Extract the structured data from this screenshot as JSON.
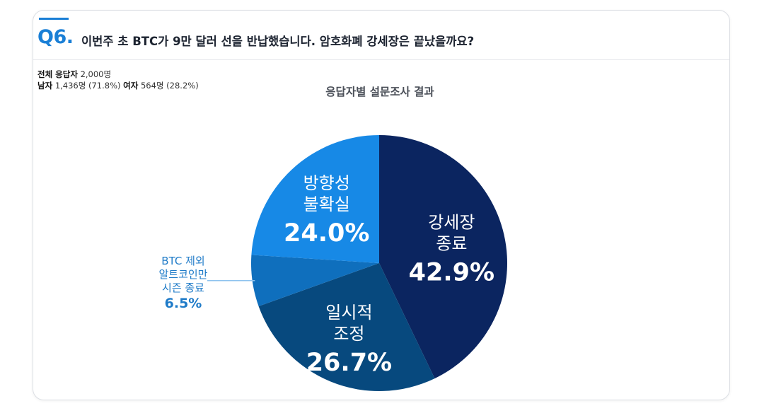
{
  "question": {
    "number": "Q6.",
    "text": "이번주 초 BTC가 9만 달러 선을 반납했습니다. 암호화폐 강세장은 끝났을까요?"
  },
  "respondents": {
    "total_label": "전체 응답자",
    "total_value": "2,000명",
    "male_label": "남자",
    "male_value": "1,436명 (71.8%)",
    "female_label": "여자",
    "female_value": "564명 (28.2%)"
  },
  "chart_data": {
    "type": "pie",
    "title": "응답자별 설문조사 결과",
    "slices": [
      {
        "label_lines": [
          "강세장",
          "종료"
        ],
        "value": 42.9,
        "value_label": "42.9%",
        "color": "#0b2560",
        "label_position": "inside"
      },
      {
        "label_lines": [
          "일시적",
          "조정"
        ],
        "value": 26.7,
        "value_label": "26.7%",
        "color": "#07497e",
        "label_position": "inside"
      },
      {
        "label_lines": [
          "BTC 제외",
          "알트코인만",
          "시즌 종료"
        ],
        "value": 6.5,
        "value_label": "6.5%",
        "color": "#0f6fbd",
        "label_position": "outside-left"
      },
      {
        "label_lines": [
          "방향성",
          "불확실"
        ],
        "value": 24.0,
        "value_label": "24.0%",
        "color": "#1789e6",
        "label_position": "inside"
      }
    ],
    "start": "12 o'clock",
    "direction": "clockwise",
    "leader_line_color": "#8ec3ee"
  }
}
